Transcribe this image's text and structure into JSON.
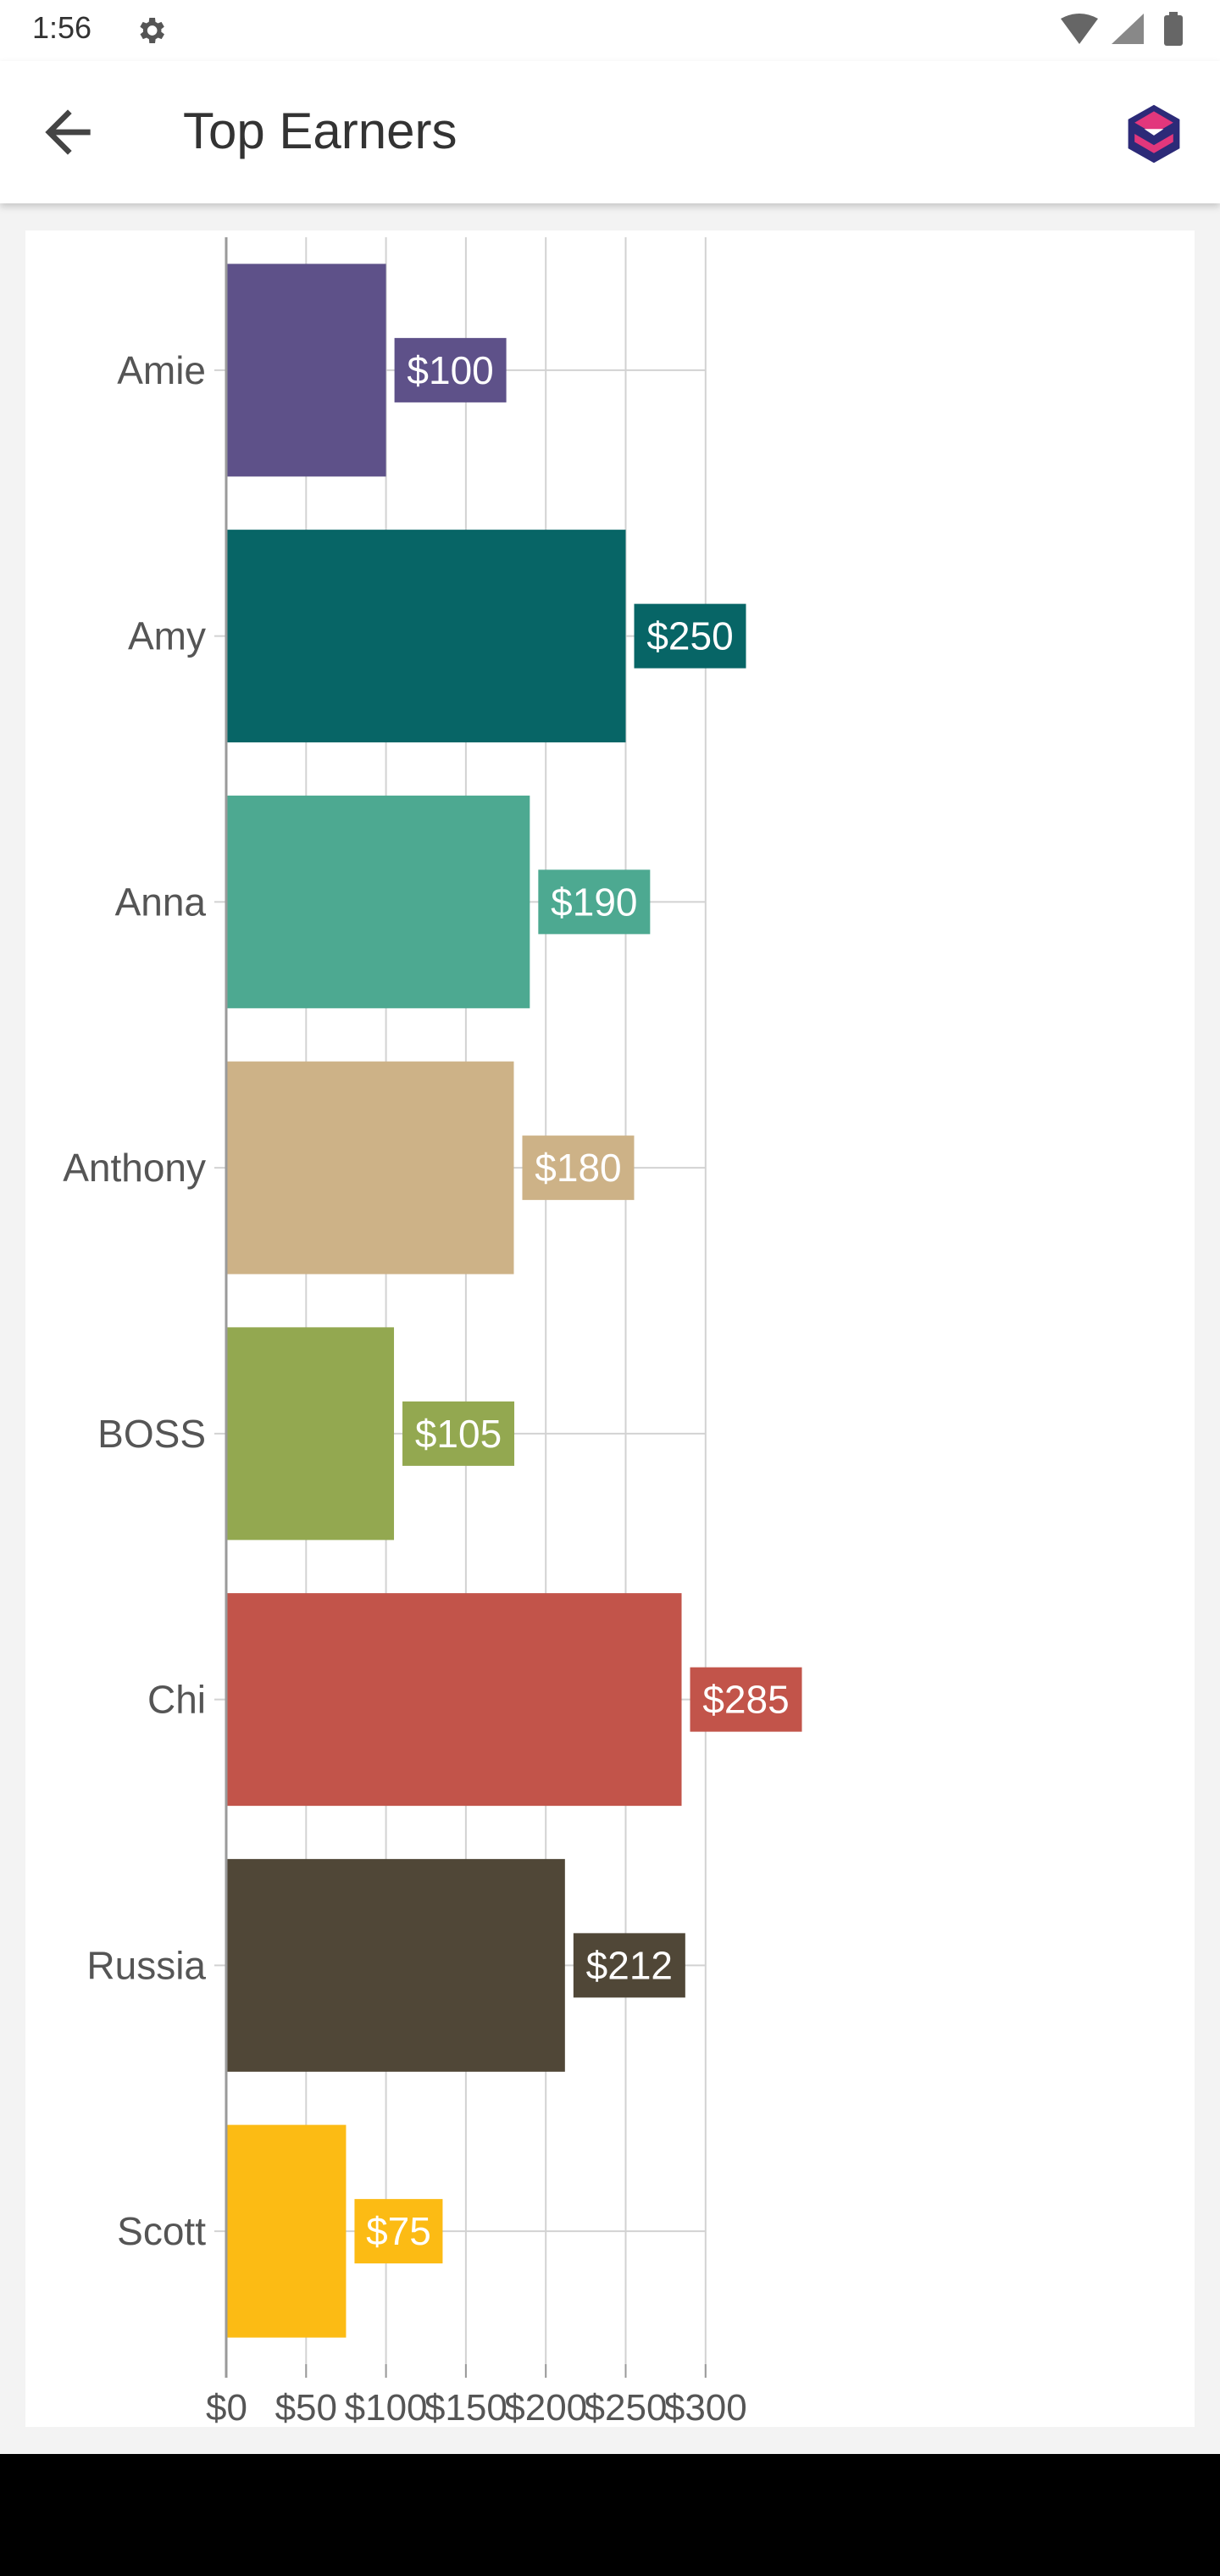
{
  "status_bar": {
    "time": "1:56",
    "icons": [
      "gear-icon",
      "wifi-icon",
      "signal-icon",
      "battery-icon"
    ]
  },
  "app_bar": {
    "title": "Top Earners",
    "back_icon": "arrow-back-icon",
    "logo_icon": "app-logo-icon"
  },
  "chart_data": {
    "type": "bar",
    "orientation": "horizontal",
    "title": "",
    "xlabel": "",
    "ylabel": "",
    "categories": [
      "Amie",
      "Amy",
      "Anna",
      "Anthony",
      "BOSS",
      "Chi",
      "Russia",
      "Scott"
    ],
    "values": [
      100,
      250,
      190,
      180,
      105,
      285,
      212,
      75
    ],
    "value_labels": [
      "$100",
      "$250",
      "$190",
      "$180",
      "$105",
      "$285",
      "$212",
      "$75"
    ],
    "colors": [
      "#5e5189",
      "#076566",
      "#4da991",
      "#cdb287",
      "#93a850",
      "#c2544a",
      "#504737",
      "#fcbb14"
    ],
    "x_ticks": [
      0,
      50,
      100,
      150,
      200,
      250,
      300
    ],
    "x_tick_labels": [
      "$0",
      "$50",
      "$100",
      "$150",
      "$200",
      "$250",
      "$300"
    ],
    "xlim": [
      0,
      300
    ],
    "grid": true,
    "legend": "none"
  }
}
